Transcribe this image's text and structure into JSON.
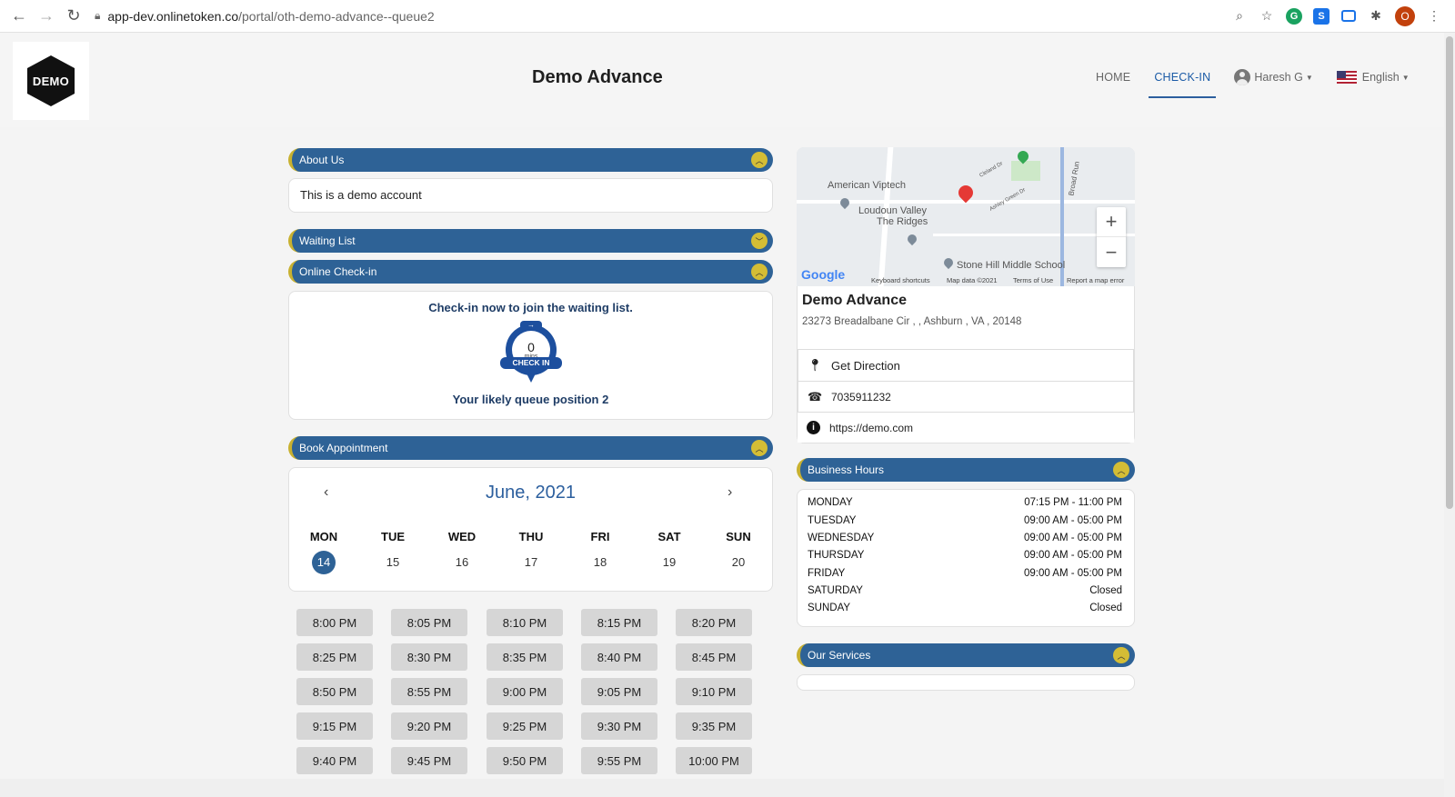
{
  "browser": {
    "url_host": "app-dev.onlinetoken.co",
    "url_path": "/portal/oth-demo-advance--queue2",
    "profile_initial": "O"
  },
  "header": {
    "logo_text": "DEMO",
    "title": "Demo Advance",
    "nav": {
      "home": "HOME",
      "checkin": "CHECK-IN",
      "user": "Haresh G",
      "language": "English"
    }
  },
  "about": {
    "title": "About Us",
    "text": "This is a demo account"
  },
  "waiting_list": {
    "title": "Waiting List"
  },
  "online_checkin": {
    "title": "Online Check-in",
    "heading": "Check-in now to join the waiting list.",
    "wait_value": "0",
    "wait_unit": "mins",
    "badge_label": "CHECK IN",
    "queue_position": "Your likely queue position 2"
  },
  "book_appointment": {
    "title": "Book Appointment",
    "month": "June, 2021",
    "days": [
      {
        "name": "MON",
        "date": "14",
        "selected": true
      },
      {
        "name": "TUE",
        "date": "15"
      },
      {
        "name": "WED",
        "date": "16"
      },
      {
        "name": "THU",
        "date": "17"
      },
      {
        "name": "FRI",
        "date": "18"
      },
      {
        "name": "SAT",
        "date": "19"
      },
      {
        "name": "SUN",
        "date": "20"
      }
    ],
    "slots": [
      "8:00 PM",
      "8:05 PM",
      "8:10 PM",
      "8:15 PM",
      "8:20 PM",
      "8:25 PM",
      "8:30 PM",
      "8:35 PM",
      "8:40 PM",
      "8:45 PM",
      "8:50 PM",
      "8:55 PM",
      "9:00 PM",
      "9:05 PM",
      "9:10 PM",
      "9:15 PM",
      "9:20 PM",
      "9:25 PM",
      "9:30 PM",
      "9:35 PM",
      "9:40 PM",
      "9:45 PM",
      "9:50 PM",
      "9:55 PM",
      "10:00 PM"
    ]
  },
  "map": {
    "labels": {
      "american_viptech": "American Viptech",
      "loudoun_valley": "Loudoun Valley",
      "the_ridges": "The Ridges",
      "stone_hill": "Stone Hill Middle School",
      "broad_run": "Broad Run",
      "cleland": "Cleland Dr",
      "ashley": "Ashley Green Dr"
    },
    "google": "Google",
    "footer": {
      "shortcuts": "Keyboard shortcuts",
      "data": "Map data ©2021",
      "terms": "Terms of Use",
      "report": "Report a map error"
    },
    "zoom_in": "+",
    "zoom_out": "−"
  },
  "business": {
    "name": "Demo Advance",
    "address": "23273 Breadalbane Cir , , Ashburn , VA , 20148",
    "direction": "Get Direction",
    "phone": "7035911232",
    "website": "https://demo.com"
  },
  "business_hours": {
    "title": "Business Hours",
    "rows": [
      {
        "day": "MONDAY",
        "hours": "07:15 PM - 11:00 PM"
      },
      {
        "day": "TUESDAY",
        "hours": "09:00 AM - 05:00 PM"
      },
      {
        "day": "WEDNESDAY",
        "hours": "09:00 AM - 05:00 PM"
      },
      {
        "day": "THURSDAY",
        "hours": "09:00 AM - 05:00 PM"
      },
      {
        "day": "FRIDAY",
        "hours": "09:00 AM - 05:00 PM"
      },
      {
        "day": "SATURDAY",
        "hours": "Closed"
      },
      {
        "day": "SUNDAY",
        "hours": "Closed"
      }
    ]
  },
  "services": {
    "title": "Our Services"
  },
  "colors": {
    "accent": "#2e6296",
    "toggle": "#d4bd35",
    "map_pin": "#e53935"
  }
}
